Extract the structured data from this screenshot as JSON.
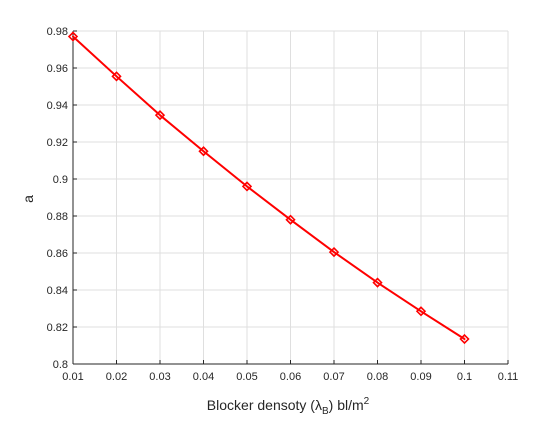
{
  "chart_data": {
    "type": "line",
    "title": "",
    "xlabel": "Blocker densoty (",
    "xlabel_symbol": "λ",
    "xlabel_subscript": "B",
    "xlabel_suffix": ") bl/m",
    "xlabel_superscript": "2",
    "ylabel": "a",
    "xlim": [
      0.01,
      0.11
    ],
    "ylim": [
      0.8,
      0.98
    ],
    "x_ticks": [
      "0.01",
      "0.02",
      "0.03",
      "0.04",
      "0.05",
      "0.06",
      "0.07",
      "0.08",
      "0.09",
      "0.1",
      "0.11"
    ],
    "y_ticks": [
      "0.8",
      "0.82",
      "0.84",
      "0.86",
      "0.88",
      "0.9",
      "0.92",
      "0.94",
      "0.96",
      "0.98"
    ],
    "grid": true,
    "series": [
      {
        "color": "#ff0000",
        "marker": "diamond",
        "x": [
          0.01,
          0.02,
          0.03,
          0.04,
          0.05,
          0.06,
          0.07,
          0.08,
          0.09,
          0.1
        ],
        "y": [
          0.977,
          0.9555,
          0.9345,
          0.915,
          0.896,
          0.878,
          0.8605,
          0.844,
          0.8285,
          0.8135
        ]
      }
    ]
  }
}
